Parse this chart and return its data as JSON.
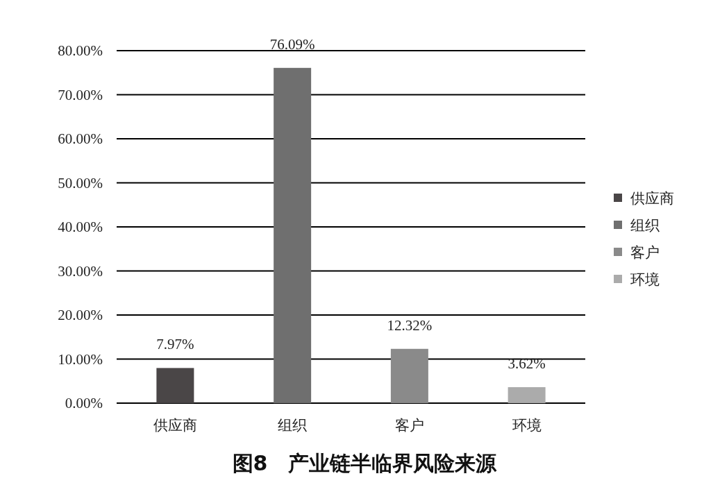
{
  "chart_data": {
    "type": "bar",
    "title": "图8　产业链半临界风险来源",
    "categories": [
      "供应商",
      "组织",
      "客户",
      "环境"
    ],
    "series": [
      {
        "name": "供应商",
        "color": "#4a4647",
        "values": [
          7.97,
          null,
          null,
          null
        ],
        "value_labels": [
          "7.97%",
          null,
          null,
          null
        ]
      },
      {
        "name": "组织",
        "color": "#6f6f6f",
        "values": [
          null,
          76.09,
          null,
          null
        ],
        "value_labels": [
          null,
          "76.09%",
          null,
          null
        ]
      },
      {
        "name": "客户",
        "color": "#8a8a8a",
        "values": [
          null,
          null,
          12.32,
          null
        ],
        "value_labels": [
          null,
          null,
          "12.32%",
          null
        ]
      },
      {
        "name": "环境",
        "color": "#ababab",
        "values": [
          null,
          null,
          null,
          3.62
        ],
        "value_labels": [
          null,
          null,
          null,
          "3.62%"
        ]
      }
    ],
    "ylim": [
      0,
      80
    ],
    "yticks": [
      {
        "value": 0,
        "label": "0.00%"
      },
      {
        "value": 10,
        "label": "10.00%"
      },
      {
        "value": 20,
        "label": "20.00%"
      },
      {
        "value": 30,
        "label": "30.00%"
      },
      {
        "value": 40,
        "label": "40.00%"
      },
      {
        "value": 50,
        "label": "50.00%"
      },
      {
        "value": 60,
        "label": "60.00%"
      },
      {
        "value": 70,
        "label": "70.00%"
      },
      {
        "value": 80,
        "label": "80.00%"
      }
    ],
    "grid": "y",
    "legend": "right"
  }
}
